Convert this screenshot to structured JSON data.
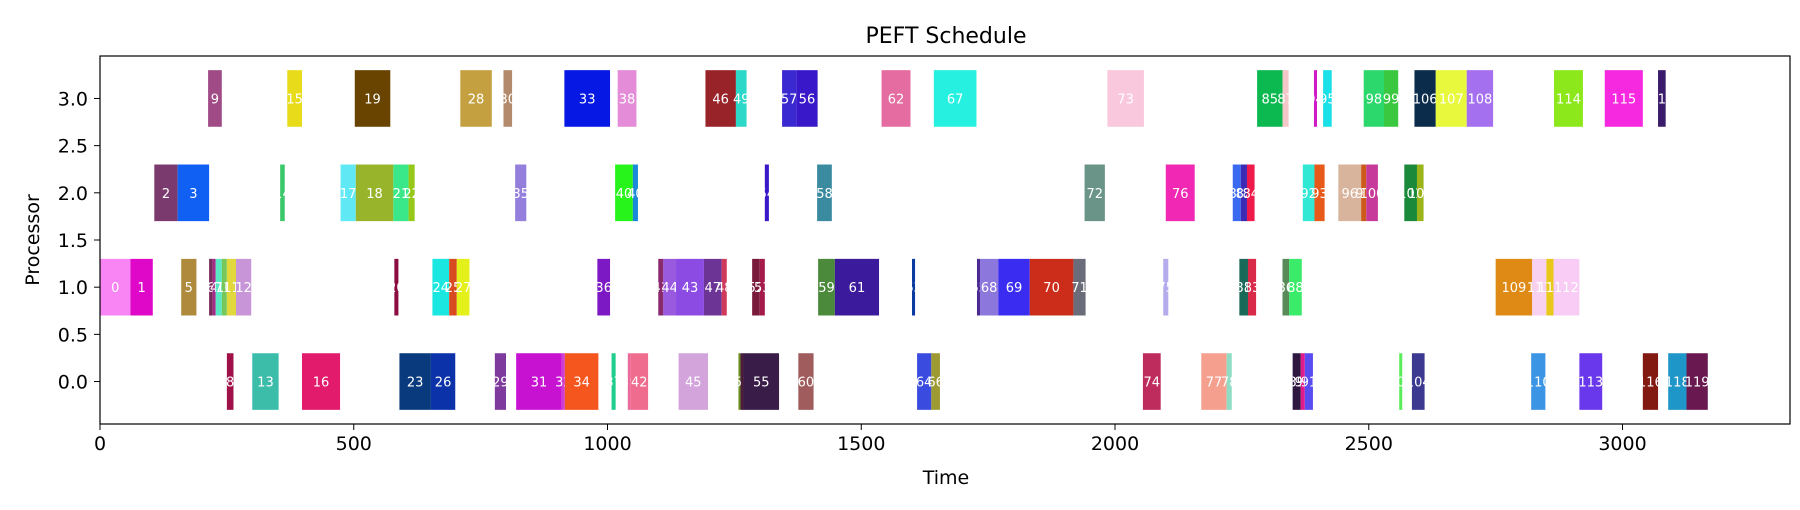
{
  "chart_data": {
    "type": "bar",
    "title": "PEFT Schedule",
    "xlabel": "Time",
    "ylabel": "Processor",
    "xlim": [
      0,
      3330
    ],
    "ylim": [
      -0.45,
      3.45
    ],
    "xticks": [
      0,
      500,
      1000,
      1500,
      2000,
      2500,
      3000
    ],
    "yticks": [
      "0.0",
      "0.5",
      "1.0",
      "1.5",
      "2.0",
      "2.5",
      "3.0"
    ],
    "ytick_values": [
      0,
      0.5,
      1,
      1.5,
      2,
      2.5,
      3
    ],
    "bar_height": 0.6,
    "grid": false,
    "legend": "none",
    "tasks": [
      {
        "p": 0,
        "s": 250,
        "e": 263,
        "label": "8",
        "color": "#a0114a"
      },
      {
        "p": 0,
        "s": 300,
        "e": 352,
        "label": "13",
        "color": "#3bbdaa"
      },
      {
        "p": 0,
        "s": 398,
        "e": 473,
        "label": "16",
        "color": "#e21b6c"
      },
      {
        "p": 0,
        "s": 590,
        "e": 652,
        "label": "23",
        "color": "#083a7d"
      },
      {
        "p": 0,
        "s": 652,
        "e": 700,
        "label": "26",
        "color": "#0b32a8"
      },
      {
        "p": 0,
        "s": 778,
        "e": 800,
        "label": "29",
        "color": "#7f3a9e"
      },
      {
        "p": 0,
        "s": 820,
        "e": 910,
        "label": "31",
        "color": "#c812d2"
      },
      {
        "p": 0,
        "s": 910,
        "e": 916,
        "label": "32",
        "color": "#d03ed0"
      },
      {
        "p": 0,
        "s": 916,
        "e": 982,
        "label": "34",
        "color": "#f5561e"
      },
      {
        "p": 0,
        "s": 1008,
        "e": 1016,
        "label": "37",
        "color": "#1fce8c"
      },
      {
        "p": 0,
        "s": 1040,
        "e": 1045,
        "label": "39",
        "color": "#ea6a9c"
      },
      {
        "p": 0,
        "s": 1045,
        "e": 1080,
        "label": "42",
        "color": "#f06c8e"
      },
      {
        "p": 0,
        "s": 1140,
        "e": 1198,
        "label": "45",
        "color": "#d3a4dc"
      },
      {
        "p": 0,
        "s": 1258,
        "e": 1262,
        "label": "50",
        "color": "#6b8f20"
      },
      {
        "p": 0,
        "s": 1262,
        "e": 1268,
        "label": "51",
        "color": "#4a1d3c"
      },
      {
        "p": 0,
        "s": 1268,
        "e": 1338,
        "label": "55",
        "color": "#3a1c48"
      },
      {
        "p": 0,
        "s": 1376,
        "e": 1406,
        "label": "60",
        "color": "#a05c5c"
      },
      {
        "p": 0,
        "s": 1610,
        "e": 1638,
        "label": "64",
        "color": "#3a4ce0"
      },
      {
        "p": 0,
        "s": 1638,
        "e": 1655,
        "label": "66",
        "color": "#9c9a30"
      },
      {
        "p": 0,
        "s": 2055,
        "e": 2090,
        "label": "74",
        "color": "#be2c5e"
      },
      {
        "p": 0,
        "s": 2170,
        "e": 2220,
        "label": "77",
        "color": "#f5a08e"
      },
      {
        "p": 0,
        "s": 2220,
        "e": 2230,
        "label": "78",
        "color": "#8fdcc4"
      },
      {
        "p": 0,
        "s": 2350,
        "e": 2366,
        "label": "89",
        "color": "#2e1840"
      },
      {
        "p": 0,
        "s": 2366,
        "e": 2374,
        "label": "90",
        "color": "#e01a8c"
      },
      {
        "p": 0,
        "s": 2374,
        "e": 2390,
        "label": "91",
        "color": "#5a4cf0"
      },
      {
        "p": 0,
        "s": 2560,
        "e": 2566,
        "label": "102",
        "color": "#5aec5a"
      },
      {
        "p": 0,
        "s": 2585,
        "e": 2610,
        "label": "104",
        "color": "#3c3a90"
      },
      {
        "p": 0,
        "s": 2820,
        "e": 2848,
        "label": "110",
        "color": "#3c94e4"
      },
      {
        "p": 0,
        "s": 2915,
        "e": 2960,
        "label": "113",
        "color": "#6a38ec"
      },
      {
        "p": 0,
        "s": 3040,
        "e": 3070,
        "label": "116",
        "color": "#821a12"
      },
      {
        "p": 0,
        "s": 3090,
        "e": 3126,
        "label": "118",
        "color": "#1e96c8"
      },
      {
        "p": 0,
        "s": 3126,
        "e": 3168,
        "label": "119",
        "color": "#6a1850"
      },
      {
        "p": 1,
        "s": 0,
        "e": 60,
        "label": "0",
        "color": "#f985f4"
      },
      {
        "p": 1,
        "s": 60,
        "e": 104,
        "label": "1",
        "color": "#df08c8"
      },
      {
        "p": 1,
        "s": 160,
        "e": 190,
        "label": "5",
        "color": "#b08a3c"
      },
      {
        "p": 1,
        "s": 215,
        "e": 222,
        "label": "6",
        "color": "#7a2a5a"
      },
      {
        "p": 1,
        "s": 222,
        "e": 228,
        "label": "4",
        "color": "#a52a8a"
      },
      {
        "p": 1,
        "s": 228,
        "e": 240,
        "label": "7",
        "color": "#58e8c4"
      },
      {
        "p": 1,
        "s": 240,
        "e": 250,
        "label": "10",
        "color": "#76c85a"
      },
      {
        "p": 1,
        "s": 250,
        "e": 268,
        "label": "11",
        "color": "#e0d83c"
      },
      {
        "p": 1,
        "s": 268,
        "e": 298,
        "label": "12",
        "color": "#c896d8"
      },
      {
        "p": 1,
        "s": 580,
        "e": 588,
        "label": "20",
        "color": "#8a0c40"
      },
      {
        "p": 1,
        "s": 655,
        "e": 688,
        "label": "24",
        "color": "#1ae8e0"
      },
      {
        "p": 1,
        "s": 688,
        "e": 703,
        "label": "25",
        "color": "#d84a20"
      },
      {
        "p": 1,
        "s": 703,
        "e": 728,
        "label": "27",
        "color": "#e4f01a"
      },
      {
        "p": 1,
        "s": 980,
        "e": 1005,
        "label": "36",
        "color": "#7c18c4"
      },
      {
        "p": 1,
        "s": 1100,
        "e": 1110,
        "label": "41",
        "color": "#8a2a6c"
      },
      {
        "p": 1,
        "s": 1110,
        "e": 1135,
        "label": "44",
        "color": "#9a5ae0"
      },
      {
        "p": 1,
        "s": 1135,
        "e": 1190,
        "label": "43",
        "color": "#8c4ce4"
      },
      {
        "p": 1,
        "s": 1190,
        "e": 1225,
        "label": "47",
        "color": "#6c3494"
      },
      {
        "p": 1,
        "s": 1225,
        "e": 1235,
        "label": "48",
        "color": "#d03a5a"
      },
      {
        "p": 1,
        "s": 1285,
        "e": 1300,
        "label": "52",
        "color": "#7a1a3a"
      },
      {
        "p": 1,
        "s": 1300,
        "e": 1310,
        "label": "53",
        "color": "#a41a4a"
      },
      {
        "p": 1,
        "s": 1415,
        "e": 1448,
        "label": "59",
        "color": "#4a8a3a"
      },
      {
        "p": 1,
        "s": 1448,
        "e": 1535,
        "label": "61",
        "color": "#3c1a9c"
      },
      {
        "p": 1,
        "s": 1600,
        "e": 1606,
        "label": "63",
        "color": "#0a3aa0"
      },
      {
        "p": 1,
        "s": 1728,
        "e": 1734,
        "label": "65",
        "color": "#4a2a90"
      },
      {
        "p": 1,
        "s": 1734,
        "e": 1770,
        "label": "68",
        "color": "#8c78dc"
      },
      {
        "p": 1,
        "s": 1770,
        "e": 1832,
        "label": "69",
        "color": "#3a2cf0"
      },
      {
        "p": 1,
        "s": 1832,
        "e": 1918,
        "label": "70",
        "color": "#cc2c1a"
      },
      {
        "p": 1,
        "s": 1918,
        "e": 1942,
        "label": "71",
        "color": "#6a6c7a"
      },
      {
        "p": 1,
        "s": 2095,
        "e": 2105,
        "label": "75",
        "color": "#b4acec"
      },
      {
        "p": 1,
        "s": 2245,
        "e": 2262,
        "label": "81",
        "color": "#1a6a5a"
      },
      {
        "p": 1,
        "s": 2262,
        "e": 2278,
        "label": "83",
        "color": "#da2a4a"
      },
      {
        "p": 1,
        "s": 2330,
        "e": 2343,
        "label": "86",
        "color": "#5a8a5a"
      },
      {
        "p": 1,
        "s": 2343,
        "e": 2368,
        "label": "88",
        "color": "#3aec6a"
      },
      {
        "p": 1,
        "s": 2750,
        "e": 2822,
        "label": "109",
        "color": "#de8a14"
      },
      {
        "p": 1,
        "s": 2822,
        "e": 2850,
        "label": "111",
        "color": "#f8d0f0"
      },
      {
        "p": 1,
        "s": 2850,
        "e": 2864,
        "label": "112",
        "color": "#e8c81a"
      },
      {
        "p": 1,
        "s": 2864,
        "e": 2915,
        "label": "112",
        "color": "#f8ccf4"
      },
      {
        "p": 2,
        "s": 107,
        "e": 153,
        "label": "2",
        "color": "#7a3a6e"
      },
      {
        "p": 2,
        "s": 153,
        "e": 215,
        "label": "3",
        "color": "#1060f4"
      },
      {
        "p": 2,
        "s": 355,
        "e": 364,
        "label": "14",
        "color": "#3ac86a"
      },
      {
        "p": 2,
        "s": 474,
        "e": 504,
        "label": "17",
        "color": "#60e8f4"
      },
      {
        "p": 2,
        "s": 504,
        "e": 578,
        "label": "18",
        "color": "#98b42a"
      },
      {
        "p": 2,
        "s": 578,
        "e": 608,
        "label": "21",
        "color": "#3ae88a"
      },
      {
        "p": 2,
        "s": 608,
        "e": 620,
        "label": "22",
        "color": "#96c81a"
      },
      {
        "p": 2,
        "s": 818,
        "e": 840,
        "label": "35",
        "color": "#9480dc"
      },
      {
        "p": 2,
        "s": 1015,
        "e": 1050,
        "label": "40",
        "color": "#26f41a"
      },
      {
        "p": 2,
        "s": 1050,
        "e": 1060,
        "label": "40",
        "color": "#1a8ad8"
      },
      {
        "p": 2,
        "s": 1310,
        "e": 1318,
        "label": "54",
        "color": "#3a18c8"
      },
      {
        "p": 2,
        "s": 1413,
        "e": 1442,
        "label": "58",
        "color": "#3a8aa0"
      },
      {
        "p": 2,
        "s": 1940,
        "e": 1980,
        "label": "72",
        "color": "#6a9488"
      },
      {
        "p": 2,
        "s": 2100,
        "e": 2157,
        "label": "76",
        "color": "#f028b4"
      },
      {
        "p": 2,
        "s": 2232,
        "e": 2248,
        "label": "80",
        "color": "#3a6af0"
      },
      {
        "p": 2,
        "s": 2248,
        "e": 2260,
        "label": "82",
        "color": "#3a2ab4"
      },
      {
        "p": 2,
        "s": 2260,
        "e": 2275,
        "label": "84",
        "color": "#f01a4a"
      },
      {
        "p": 2,
        "s": 2370,
        "e": 2393,
        "label": "92",
        "color": "#30e8d4"
      },
      {
        "p": 2,
        "s": 2393,
        "e": 2413,
        "label": "93",
        "color": "#e85a1a"
      },
      {
        "p": 2,
        "s": 2440,
        "e": 2485,
        "label": "96",
        "color": "#d8b49c"
      },
      {
        "p": 2,
        "s": 2485,
        "e": 2495,
        "label": "97",
        "color": "#cc5a1a"
      },
      {
        "p": 2,
        "s": 2495,
        "e": 2518,
        "label": "100",
        "color": "#c83a9a"
      },
      {
        "p": 2,
        "s": 2570,
        "e": 2595,
        "label": "101",
        "color": "#1a8a3a"
      },
      {
        "p": 2,
        "s": 2595,
        "e": 2608,
        "label": "105",
        "color": "#9ab41a"
      },
      {
        "p": 3,
        "s": 213,
        "e": 240,
        "label": "9",
        "color": "#a04a86"
      },
      {
        "p": 3,
        "s": 369,
        "e": 398,
        "label": "15",
        "color": "#e8dc1a"
      },
      {
        "p": 3,
        "s": 502,
        "e": 572,
        "label": "19",
        "color": "#684400"
      },
      {
        "p": 3,
        "s": 710,
        "e": 772,
        "label": "28",
        "color": "#c4a040"
      },
      {
        "p": 3,
        "s": 795,
        "e": 812,
        "label": "30",
        "color": "#b48a6c"
      },
      {
        "p": 3,
        "s": 915,
        "e": 1005,
        "label": "33",
        "color": "#0618e4"
      },
      {
        "p": 3,
        "s": 1020,
        "e": 1057,
        "label": "38",
        "color": "#e48cd8"
      },
      {
        "p": 3,
        "s": 1193,
        "e": 1253,
        "label": "46",
        "color": "#98242a"
      },
      {
        "p": 3,
        "s": 1253,
        "e": 1274,
        "label": "49",
        "color": "#2cd8c8"
      },
      {
        "p": 3,
        "s": 1344,
        "e": 1372,
        "label": "57",
        "color": "#3a28d0"
      },
      {
        "p": 3,
        "s": 1372,
        "e": 1414,
        "label": "56",
        "color": "#3818c8"
      },
      {
        "p": 3,
        "s": 1540,
        "e": 1597,
        "label": "62",
        "color": "#e46ca0"
      },
      {
        "p": 3,
        "s": 1643,
        "e": 1727,
        "label": "67",
        "color": "#26f0e0"
      },
      {
        "p": 3,
        "s": 1985,
        "e": 2057,
        "label": "73",
        "color": "#fac8dc"
      },
      {
        "p": 3,
        "s": 2280,
        "e": 2330,
        "label": "85",
        "color": "#0cb850"
      },
      {
        "p": 3,
        "s": 2330,
        "e": 2342,
        "label": "87",
        "color": "#f4c8c8"
      },
      {
        "p": 3,
        "s": 2392,
        "e": 2398,
        "label": "94",
        "color": "#d01ac8"
      },
      {
        "p": 3,
        "s": 2410,
        "e": 2427,
        "label": "95",
        "color": "#1ae0e8"
      },
      {
        "p": 3,
        "s": 2490,
        "e": 2530,
        "label": "98",
        "color": "#2cd86c"
      },
      {
        "p": 3,
        "s": 2530,
        "e": 2558,
        "label": "99",
        "color": "#3ac840"
      },
      {
        "p": 3,
        "s": 2590,
        "e": 2632,
        "label": "106",
        "color": "#0c2c4c"
      },
      {
        "p": 3,
        "s": 2632,
        "e": 2693,
        "label": "107",
        "color": "#e8f83c"
      },
      {
        "p": 3,
        "s": 2693,
        "e": 2745,
        "label": "108",
        "color": "#a470f0"
      },
      {
        "p": 3,
        "s": 2865,
        "e": 2922,
        "label": "114",
        "color": "#8ce81a"
      },
      {
        "p": 3,
        "s": 2965,
        "e": 3040,
        "label": "115",
        "color": "#f628e0"
      },
      {
        "p": 3,
        "s": 3070,
        "e": 3085,
        "label": "117",
        "color": "#3a1a6a"
      }
    ]
  }
}
